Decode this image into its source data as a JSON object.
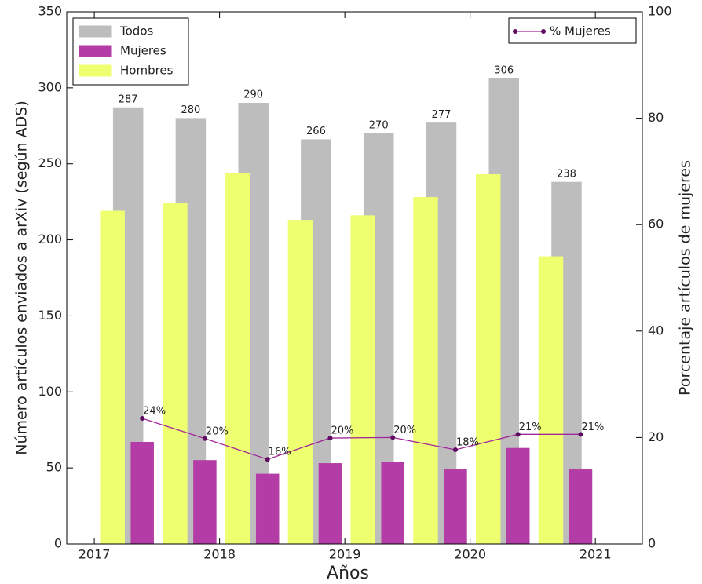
{
  "chart_data": {
    "type": "bar",
    "x": [
      2017.27,
      2017.77,
      2018.27,
      2018.77,
      2019.27,
      2019.77,
      2020.27,
      2020.77
    ],
    "xlim": [
      2016.78,
      2021.375
    ],
    "xticks": [
      2017,
      2018,
      2019,
      2020,
      2021
    ],
    "xlabel": "Años",
    "ylabel": "Número artículos enviados a arXiv (según ADS)",
    "ylim": [
      0,
      350
    ],
    "yticks": [
      0,
      50,
      100,
      150,
      200,
      250,
      300,
      350
    ],
    "y2label": "Porcentaje artículos de mujeres",
    "y2lim": [
      0,
      100
    ],
    "y2ticks": [
      0,
      20,
      40,
      60,
      80,
      100
    ],
    "legend": "upper left",
    "y2legend": "upper right",
    "series": [
      {
        "name": "Todos",
        "type": "bar",
        "color": "#bdbdbd",
        "data_labels": true,
        "values": [
          287,
          280,
          290,
          266,
          270,
          277,
          306,
          238
        ]
      },
      {
        "name": "Mujeres",
        "type": "bar",
        "color": "#b43ca6",
        "values": [
          67,
          55,
          46,
          53,
          54,
          49,
          63,
          49
        ]
      },
      {
        "name": "Hombres",
        "type": "bar",
        "color": "#eeff70",
        "values": [
          219,
          224,
          244,
          213,
          216,
          228,
          243,
          189
        ]
      },
      {
        "name": "% Mujeres",
        "type": "line",
        "axis": "y2",
        "color": "#a3279a",
        "values": [
          23.6,
          19.8,
          15.9,
          19.9,
          20.0,
          17.7,
          20.6,
          20.6
        ],
        "value_labels": [
          "24%",
          "20%",
          "16%",
          "20%",
          "20%",
          "18%",
          "21%",
          "21%"
        ]
      }
    ]
  }
}
